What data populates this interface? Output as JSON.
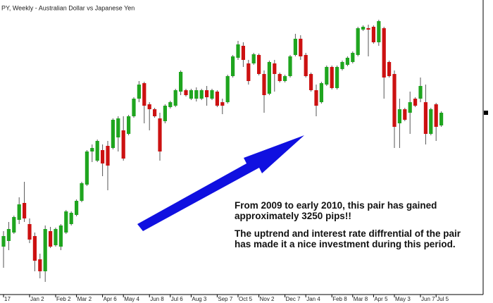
{
  "chart_data": {
    "type": "candlestick",
    "title": "PY, Weekly - Australian Dollar vs Japanese Yen",
    "annotations": [
      "From 2009 to early 2010, this pair has gained approximately 3250 pips!!",
      "The uptrend and interest rate diffrential of the pair has made it a nice investment during this period."
    ],
    "categories": [
      "17",
      null,
      null,
      null,
      null,
      "Jan 2",
      null,
      null,
      null,
      null,
      "Feb 2",
      null,
      null,
      null,
      "Mar 2",
      null,
      null,
      null,
      null,
      "Apr 6",
      null,
      null,
      null,
      "May 4",
      null,
      null,
      null,
      null,
      "Jun 8",
      null,
      null,
      null,
      "Jul 6",
      null,
      null,
      null,
      "Aug 3",
      null,
      null,
      null,
      null,
      "Sep 7",
      null,
      null,
      null,
      "Oct 5",
      null,
      null,
      null,
      "Nov 2",
      null,
      null,
      null,
      null,
      "Dec 7",
      null,
      null,
      null,
      "Jan 4",
      null,
      null,
      null,
      null,
      "Feb 8",
      null,
      null,
      null,
      "Mar 8",
      null,
      null,
      null,
      "Apr 5",
      null,
      null,
      null,
      "May 3",
      null,
      null,
      null,
      null,
      "Jun 7",
      null,
      null,
      "Jul 5",
      null
    ],
    "open": [
      61.0,
      61.8,
      63.0,
      64.8,
      67.2,
      64.2,
      62.5,
      59.2,
      57.5,
      63.2,
      61.2,
      61.0,
      63.0,
      64.2,
      65.5,
      67.5,
      69.8,
      74.5,
      73.2,
      74.7,
      75.3,
      75.0,
      76.5,
      77.5,
      77.0,
      79.5,
      82.0,
      84.2,
      81.2,
      80.5,
      79.2,
      78.8,
      80.8,
      81.0,
      83.0,
      83.2,
      82.0,
      82.0,
      82.0,
      83.2,
      82.0,
      83.0,
      81.5,
      81.5,
      85.2,
      87.8,
      89.5,
      87.0,
      87.0,
      88.2,
      85.5,
      82.7,
      87.0,
      85.5,
      84.5,
      85.2,
      88.2,
      90.5,
      88.2,
      85.5,
      83.2,
      81.5,
      84.0,
      86.5,
      83.5,
      86.2,
      86.8,
      87.2,
      88.2,
      91.8,
      92.0,
      92.2,
      90.0,
      92.0,
      87.2,
      85.5,
      78.5,
      80.5,
      80.0,
      82.0,
      82.0,
      81.5,
      77.0,
      81.2,
      78.2
    ],
    "high": [
      63.2,
      64.5,
      65.4,
      68.0,
      70.2,
      65.0,
      63.0,
      60.0,
      64.0,
      63.8,
      63.7,
      64.2,
      66.2,
      66.0,
      67.7,
      70.2,
      74.7,
      75.5,
      76.2,
      75.5,
      76.0,
      79.2,
      79.5,
      79.5,
      79.7,
      82.2,
      84.5,
      84.4,
      81.5,
      80.7,
      80.0,
      81.2,
      81.7,
      83.4,
      86.0,
      83.4,
      83.4,
      83.6,
      83.4,
      83.8,
      83.4,
      83.2,
      82.0,
      85.4,
      88.2,
      90.2,
      90.0,
      87.5,
      88.5,
      88.4,
      86.0,
      87.4,
      87.5,
      85.7,
      85.4,
      88.2,
      91.2,
      91.0,
      88.5,
      85.7,
      84.0,
      84.4,
      86.7,
      86.7,
      86.7,
      87.4,
      88.0,
      88.7,
      92.2,
      92.4,
      92.5,
      92.4,
      93.2,
      92.2,
      87.4,
      86.0,
      82.0,
      80.7,
      83.0,
      82.2,
      85.0,
      84.0,
      80.7,
      81.4,
      80.2
    ],
    "low": [
      58.0,
      60.5,
      62.8,
      64.2,
      64.5,
      61.5,
      57.5,
      56.5,
      56.0,
      60.8,
      61.0,
      60.5,
      62.8,
      64.0,
      65.3,
      67.3,
      69.6,
      73.0,
      73.0,
      71.0,
      69.0,
      74.8,
      74.5,
      73.2,
      76.8,
      79.3,
      81.5,
      78.5,
      77.5,
      79.3,
      73.2,
      78.5,
      80.6,
      80.8,
      82.5,
      82.3,
      81.8,
      81.6,
      81.8,
      81.0,
      81.8,
      80.8,
      79.8,
      81.3,
      85.0,
      87.5,
      86.5,
      84.0,
      86.8,
      85.3,
      80.0,
      82.5,
      83.0,
      84.3,
      84.3,
      85.0,
      88.0,
      87.5,
      85.0,
      83.0,
      79.5,
      81.3,
      83.8,
      83.3,
      83.3,
      86.0,
      86.6,
      87.0,
      88.0,
      91.6,
      88.0,
      89.8,
      89.5,
      82.0,
      85.0,
      75.0,
      75.0,
      78.8,
      77.0,
      80.8,
      81.5,
      75.5,
      76.8,
      76.0,
      78.0
    ],
    "close": [
      62.5,
      63.5,
      65.2,
      67.0,
      65.0,
      62.0,
      59.0,
      57.5,
      63.5,
      61.0,
      63.5,
      64.0,
      66.0,
      65.8,
      67.5,
      70.0,
      74.5,
      75.0,
      76.0,
      72.8,
      72.5,
      79.0,
      79.2,
      73.5,
      79.5,
      82.0,
      84.0,
      81.0,
      80.5,
      79.5,
      74.5,
      81.0,
      81.5,
      83.2,
      85.8,
      82.5,
      83.2,
      83.2,
      83.2,
      82.2,
      83.2,
      81.0,
      81.0,
      85.2,
      88.0,
      89.7,
      87.5,
      84.5,
      88.3,
      85.5,
      82.5,
      87.2,
      85.5,
      84.5,
      85.2,
      88.0,
      90.5,
      88.0,
      85.2,
      83.2,
      81.0,
      84.2,
      86.5,
      83.5,
      86.5,
      87.2,
      87.8,
      88.5,
      92.0,
      92.2,
      91.8,
      90.0,
      93.0,
      85.0,
      85.2,
      78.0,
      80.5,
      79.0,
      81.5,
      81.0,
      83.8,
      77.0,
      80.5,
      78.0,
      80.0
    ],
    "up_color": "#1fa51f",
    "down_color": "#cc1111",
    "ylim": [
      54.5,
      96
    ],
    "grid": false
  }
}
